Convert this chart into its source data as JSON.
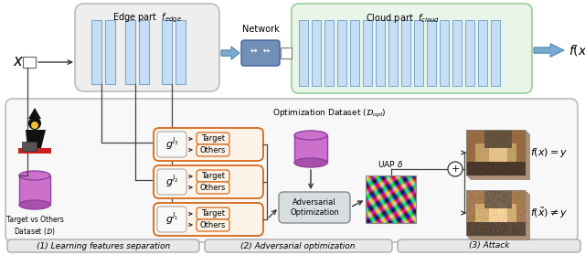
{
  "fig_width": 6.4,
  "fig_height": 2.79,
  "dpi": 100,
  "bg_color": "#ffffff",
  "edge_box_fill": "#eeeeee",
  "edge_box_edge": "#bbbbbb",
  "cloud_box_fill": "#eaf5ea",
  "cloud_box_edge": "#99cc99",
  "bottom_box_fill": "#f8f8f8",
  "bottom_box_edge": "#bbbbbb",
  "layer_fill": "#c5ddf5",
  "layer_edge": "#7aa8cc",
  "cloud_layer_fill": "#c5ddf5",
  "cloud_layer_edge": "#7aa8cc",
  "orange_edge": "#d4691a",
  "orange_fill": "#fdf3e8",
  "g_box_fill": "#f8f8f8",
  "g_box_edge": "#aaaaaa",
  "target_others_fill": "#fdf3e8",
  "target_others_edge": "#d4691a",
  "adv_box_fill": "#d8dde0",
  "adv_box_edge": "#888888",
  "network_fill": "#6080a8",
  "network_edge": "#405080",
  "arrow_color": "#333333",
  "fat_arrow_fill": "#7aaad0",
  "fat_arrow_edge": "#5088b0",
  "section_fill": "#e8e8e8",
  "section_edge": "#aaaaaa",
  "label1": "(1) Learning features separation",
  "label2": "(2) Adversarial optimization",
  "label3": "(3) Attack",
  "title_edge": "Edge part  $f_{edge}$",
  "title_cloud": "Cloud part  $f_{cloud}$",
  "network_label": "Network",
  "opt_label": "Optimization Dataset ($\\mathcal{D}_{opt}$)",
  "uap_label": "UAP $\\delta$",
  "adv_label": "Adversarial\nOptimization",
  "fx_out": "$f(x)$",
  "x_in": "$x$",
  "fx_eq_y": "$f(x) = y$",
  "fx_neq_y": "$f(\\tilde{x}) \\neq y$",
  "target_txt": "Target",
  "others_txt": "Others",
  "g_labels": [
    "$g^{l_3}$",
    "$g^{l_2}$",
    "$g^{l_1}$"
  ],
  "dataset_txt": "Target vs Others\nDataset ($\\mathcal{D}$)"
}
